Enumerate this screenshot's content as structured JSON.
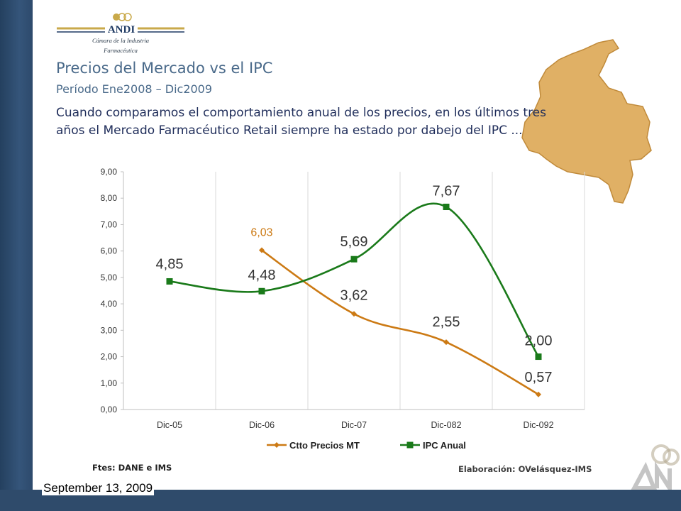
{
  "logo": {
    "brand": "ANDI",
    "subtitle_line1": "Cámara de la Industria",
    "subtitle_line2": "Farmacéutica"
  },
  "heading": {
    "title": "Precios del Mercado vs el IPC",
    "period": "Período Ene2008 – Dic2009",
    "body_line1": "Cuando comparamos el comportamiento anual de los precios, en los últimos tres",
    "body_line2": "años el Mercado Farmacéutico Retail siempre ha estado por dabejo del IPC ..."
  },
  "sources": {
    "left": "Ftes: DANE e IMS",
    "right": "Elaboración: OVelásquez-IMS"
  },
  "footer": {
    "date": "September 13, 2009"
  },
  "colors": {
    "ctto": "#cc7a14",
    "ipc": "#1a7a1a",
    "map": "#e0b065",
    "title": "#4a6a8a"
  },
  "chart_data": {
    "type": "line",
    "categories": [
      "Dic-05",
      "Dic-06",
      "Dic-07",
      "Dic-082",
      "Dic-092"
    ],
    "y_ticks": [
      "0,00",
      "1,00",
      "2,00",
      "3,00",
      "4,00",
      "5,00",
      "6,00",
      "7,00",
      "8,00",
      "9,00"
    ],
    "ylim": [
      0,
      9
    ],
    "grid": "vertical",
    "legend_position": "bottom",
    "series": [
      {
        "name": "Ctto Precios MT",
        "color": "#cc7a14",
        "marker": "diamond",
        "values": [
          null,
          6.03,
          3.62,
          2.55,
          0.57
        ],
        "labels": [
          "",
          "6,03",
          "3,62",
          "2,55",
          "0,57"
        ]
      },
      {
        "name": "IPC Anual",
        "color": "#1a7a1a",
        "marker": "square",
        "values": [
          4.85,
          4.48,
          5.69,
          7.67,
          2.0
        ],
        "labels": [
          "4,85",
          "4,48",
          "5,69",
          "7,67",
          "2,00"
        ]
      }
    ]
  }
}
